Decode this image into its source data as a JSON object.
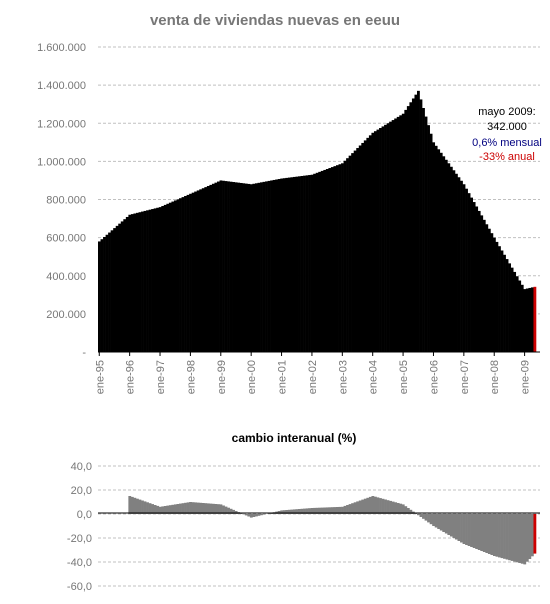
{
  "chart_data": [
    {
      "type": "bar",
      "title": "venta de viviendas nuevas en eeuu",
      "x_labels": [
        "ene-95",
        "ene-96",
        "ene-97",
        "ene-98",
        "ene-99",
        "ene-00",
        "ene-01",
        "ene-02",
        "ene-03",
        "ene-04",
        "ene-05",
        "ene-06",
        "ene-07",
        "ene-08",
        "ene-09"
      ],
      "y_tick_labels": [
        "-",
        "200.000",
        "400.000",
        "600.000",
        "800.000",
        "1.000.000",
        "1.200.000",
        "1.400.000",
        "1.600.000"
      ],
      "ylim": [
        0,
        1600000
      ],
      "grid": true,
      "colors": {
        "bars": "#000000",
        "highlight": "#cc0000",
        "grid": "#c0c0c0",
        "axis_text": "#777777"
      },
      "annotation": {
        "line1": "mayo 2009:",
        "line2": "342.000",
        "line3": "0,6% mensual",
        "line4": "-33% anual",
        "line3_color": "#000080",
        "line4_color": "#cc0000"
      },
      "series": [
        {
          "start": "1995-01",
          "end": "2009-05",
          "frequency": "monthly",
          "annual_anchors": {
            "1995-01": 580000,
            "1996-01": 720000,
            "1997-01": 760000,
            "1998-01": 830000,
            "1999-01": 900000,
            "2000-01": 880000,
            "2001-01": 910000,
            "2002-01": 930000,
            "2003-01": 990000,
            "2004-01": 1150000,
            "2005-01": 1250000,
            "2005-07": 1370000,
            "2006-01": 1100000,
            "2007-01": 880000,
            "2008-01": 600000,
            "2009-01": 330000,
            "2009-05": 342000
          }
        }
      ]
    },
    {
      "type": "bar",
      "title": "cambio interanual (%)",
      "y_tick_labels": [
        "-60,0",
        "-40,0",
        "-20,0",
        "0,0",
        "20,0",
        "40,0"
      ],
      "ylim": [
        -60,
        40
      ],
      "grid": true,
      "colors": {
        "bars": "#808080",
        "highlight": "#cc0000",
        "grid": "#c0c0c0",
        "axis_text": "#777777"
      },
      "series": [
        {
          "start": "1996-01",
          "end": "2009-05",
          "frequency": "monthly",
          "annual_anchors": {
            "1996-01": 15,
            "1997-01": 6,
            "1998-01": 10,
            "1999-01": 8,
            "2000-01": -3,
            "2001-01": 3,
            "2002-01": 5,
            "2003-01": 6,
            "2004-01": 15,
            "2005-01": 8,
            "2006-01": -10,
            "2007-01": -25,
            "2008-01": -35,
            "2009-01": -42,
            "2009-05": -33
          }
        }
      ]
    }
  ]
}
